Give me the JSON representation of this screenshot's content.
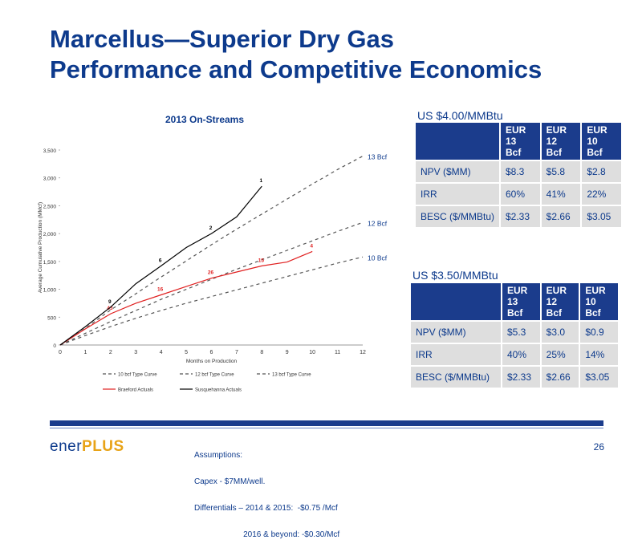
{
  "slide": {
    "title_line1": "Marcellus—Superior Dry Gas",
    "title_line2": "Performance and Competitive Economics",
    "page_number": "26"
  },
  "logo": {
    "part1": "ener",
    "part2": "PLUS"
  },
  "assumptions": {
    "line1": "Assumptions:",
    "line2": "Capex - $7MM/well.",
    "line3": "Differentials – 2014 & 2015:  -$0.75 /Mcf",
    "line4": "                      2016 & beyond: -$0.30/Mcf"
  },
  "table1": {
    "price_label": "US $4.00/MMBtu",
    "headers": [
      [
        "EUR",
        "13",
        "Bcf"
      ],
      [
        "EUR",
        "12",
        "Bcf"
      ],
      [
        "EUR",
        "10",
        "Bcf"
      ]
    ],
    "rows": [
      {
        "label": "NPV ($MM)",
        "values": [
          "$8.3",
          "$5.8",
          "$2.8"
        ]
      },
      {
        "label": "IRR",
        "values": [
          "60%",
          "41%",
          "22%"
        ]
      },
      {
        "label": "BESC ($/MMBtu)",
        "values": [
          "$2.33",
          "$2.66",
          "$3.05"
        ]
      }
    ]
  },
  "table2": {
    "price_label": "US $3.50/MMBtu",
    "headers": [
      [
        "EUR",
        "13",
        "Bcf"
      ],
      [
        "EUR",
        "12",
        "Bcf"
      ],
      [
        "EUR",
        "10",
        "Bcf"
      ]
    ],
    "rows": [
      {
        "label": "NPV ($MM)",
        "values": [
          "$5.3",
          "$3.0",
          "$0.9"
        ]
      },
      {
        "label": "IRR",
        "values": [
          "40%",
          "25%",
          "14%"
        ]
      },
      {
        "label": "BESC ($/MMBtu)",
        "values": [
          "$2.33",
          "$2.66",
          "$3.05"
        ]
      }
    ]
  },
  "chart_data": {
    "type": "line",
    "title": "2013 On-Streams",
    "xlabel": "Months on Production",
    "ylabel": "Average Cumulative Production (MMcf)",
    "xlim": [
      0,
      12
    ],
    "ylim": [
      0,
      3500
    ],
    "x_ticks": [
      "0",
      "1",
      "2",
      "3",
      "4",
      "5",
      "6",
      "7",
      "8",
      "9",
      "10",
      "11",
      "12"
    ],
    "y_ticks": [
      "0",
      "500",
      "1,000",
      "1,500",
      "2,000",
      "2,500",
      "3,000",
      "3,500"
    ],
    "grid": false,
    "legend_position": "bottom",
    "series": [
      {
        "name": "10 bcf Type Curve",
        "style": "dashed",
        "color": "#555555",
        "x": [
          0,
          1,
          2,
          3,
          4,
          5,
          6,
          7,
          8,
          9,
          10,
          11,
          12
        ],
        "y": [
          0,
          170,
          330,
          480,
          620,
          750,
          870,
          990,
          1110,
          1230,
          1350,
          1470,
          1580
        ]
      },
      {
        "name": "12 bcf Type Curve",
        "style": "dashed",
        "color": "#555555",
        "x": [
          0,
          1,
          2,
          3,
          4,
          5,
          6,
          7,
          8,
          9,
          10,
          11,
          12
        ],
        "y": [
          0,
          210,
          420,
          620,
          820,
          1000,
          1180,
          1360,
          1530,
          1700,
          1870,
          2040,
          2200
        ]
      },
      {
        "name": "13 bcf Type Curve",
        "style": "dashed",
        "color": "#555555",
        "x": [
          0,
          1,
          2,
          3,
          4,
          5,
          6,
          7,
          8,
          9,
          10,
          11,
          12
        ],
        "y": [
          0,
          300,
          630,
          920,
          1220,
          1510,
          1800,
          2080,
          2350,
          2620,
          2890,
          3150,
          3390
        ]
      },
      {
        "name": "Braeford Actuals",
        "style": "solid",
        "color": "#e02020",
        "x": [
          0,
          1,
          2,
          3,
          4,
          5,
          6,
          7,
          8,
          9,
          10
        ],
        "y": [
          0,
          290,
          560,
          750,
          900,
          1050,
          1200,
          1310,
          1420,
          1490,
          1680
        ],
        "point_labels": [
          {
            "x": 2,
            "y": 560,
            "text": "43"
          },
          {
            "x": 4,
            "y": 900,
            "text": "16"
          },
          {
            "x": 6,
            "y": 1200,
            "text": "26"
          },
          {
            "x": 8,
            "y": 1420,
            "text": "15"
          },
          {
            "x": 10,
            "y": 1680,
            "text": "4"
          }
        ]
      },
      {
        "name": "Susquehanna Actuals",
        "style": "solid",
        "color": "#000000",
        "x": [
          0,
          1,
          2,
          3,
          4,
          5,
          6,
          7,
          8
        ],
        "y": [
          0,
          330,
          680,
          1100,
          1420,
          1750,
          2000,
          2300,
          2850
        ],
        "point_labels": [
          {
            "x": 2,
            "y": 680,
            "text": "9"
          },
          {
            "x": 4,
            "y": 1420,
            "text": "6"
          },
          {
            "x": 6,
            "y": 2000,
            "text": "2"
          },
          {
            "x": 8,
            "y": 2850,
            "text": "1"
          }
        ]
      }
    ],
    "end_labels": [
      {
        "series": "13 bcf Type Curve",
        "text": "13 Bcf"
      },
      {
        "series": "12 bcf Type Curve",
        "text": "12 Bcf"
      },
      {
        "series": "10 bcf Type Curve",
        "text": "10 Bcf"
      }
    ],
    "colors": {
      "title": "#0d3a8c",
      "accent": "#1b3c8c"
    }
  }
}
